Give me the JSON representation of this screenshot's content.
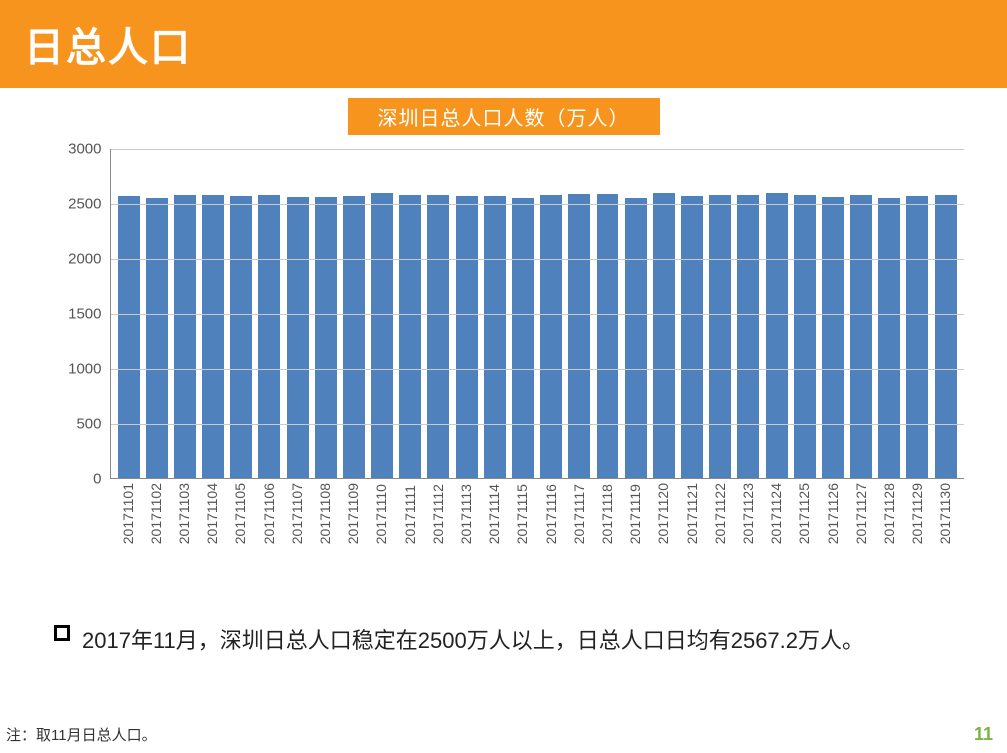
{
  "header": {
    "title": "日总人口"
  },
  "subtitle": {
    "text": "深圳日总人口人数（万人）"
  },
  "chart": {
    "type": "bar",
    "ylim": [
      0,
      3000
    ],
    "ytick_step": 500,
    "yticks": [
      0,
      500,
      1000,
      1500,
      2000,
      2500,
      3000
    ],
    "bar_color": "#4f81bd",
    "grid_color": "#c9c9c9",
    "axis_color": "#888888",
    "background_color": "#ffffff",
    "label_fontsize": 15,
    "xlabel_fontsize": 14,
    "bar_width": 0.78,
    "categories": [
      "20171101",
      "20171102",
      "20171103",
      "20171104",
      "20171105",
      "20171106",
      "20171107",
      "20171108",
      "20171109",
      "20171110",
      "20171111",
      "20171112",
      "20171113",
      "20171114",
      "20171115",
      "20171116",
      "20171117",
      "20171118",
      "20171119",
      "20171120",
      "20171121",
      "20171122",
      "20171123",
      "20171124",
      "20171125",
      "20171126",
      "20171127",
      "20171128",
      "20171129",
      "20171130"
    ],
    "values": [
      2560,
      2550,
      2575,
      2575,
      2565,
      2575,
      2555,
      2555,
      2560,
      2590,
      2575,
      2575,
      2560,
      2560,
      2550,
      2575,
      2585,
      2585,
      2550,
      2590,
      2560,
      2575,
      2575,
      2590,
      2575,
      2555,
      2570,
      2550,
      2560,
      2570
    ]
  },
  "bullet": {
    "text": "2017年11月，深圳日总人口稳定在2500万人以上，日总人口日均有2567.2万人。"
  },
  "footnote": {
    "text": "注：取11月日总人口。"
  },
  "page": {
    "number": "11"
  },
  "colors": {
    "header_bg": "#f7941d",
    "header_text": "#ffffff",
    "page_num": "#7cb342"
  }
}
